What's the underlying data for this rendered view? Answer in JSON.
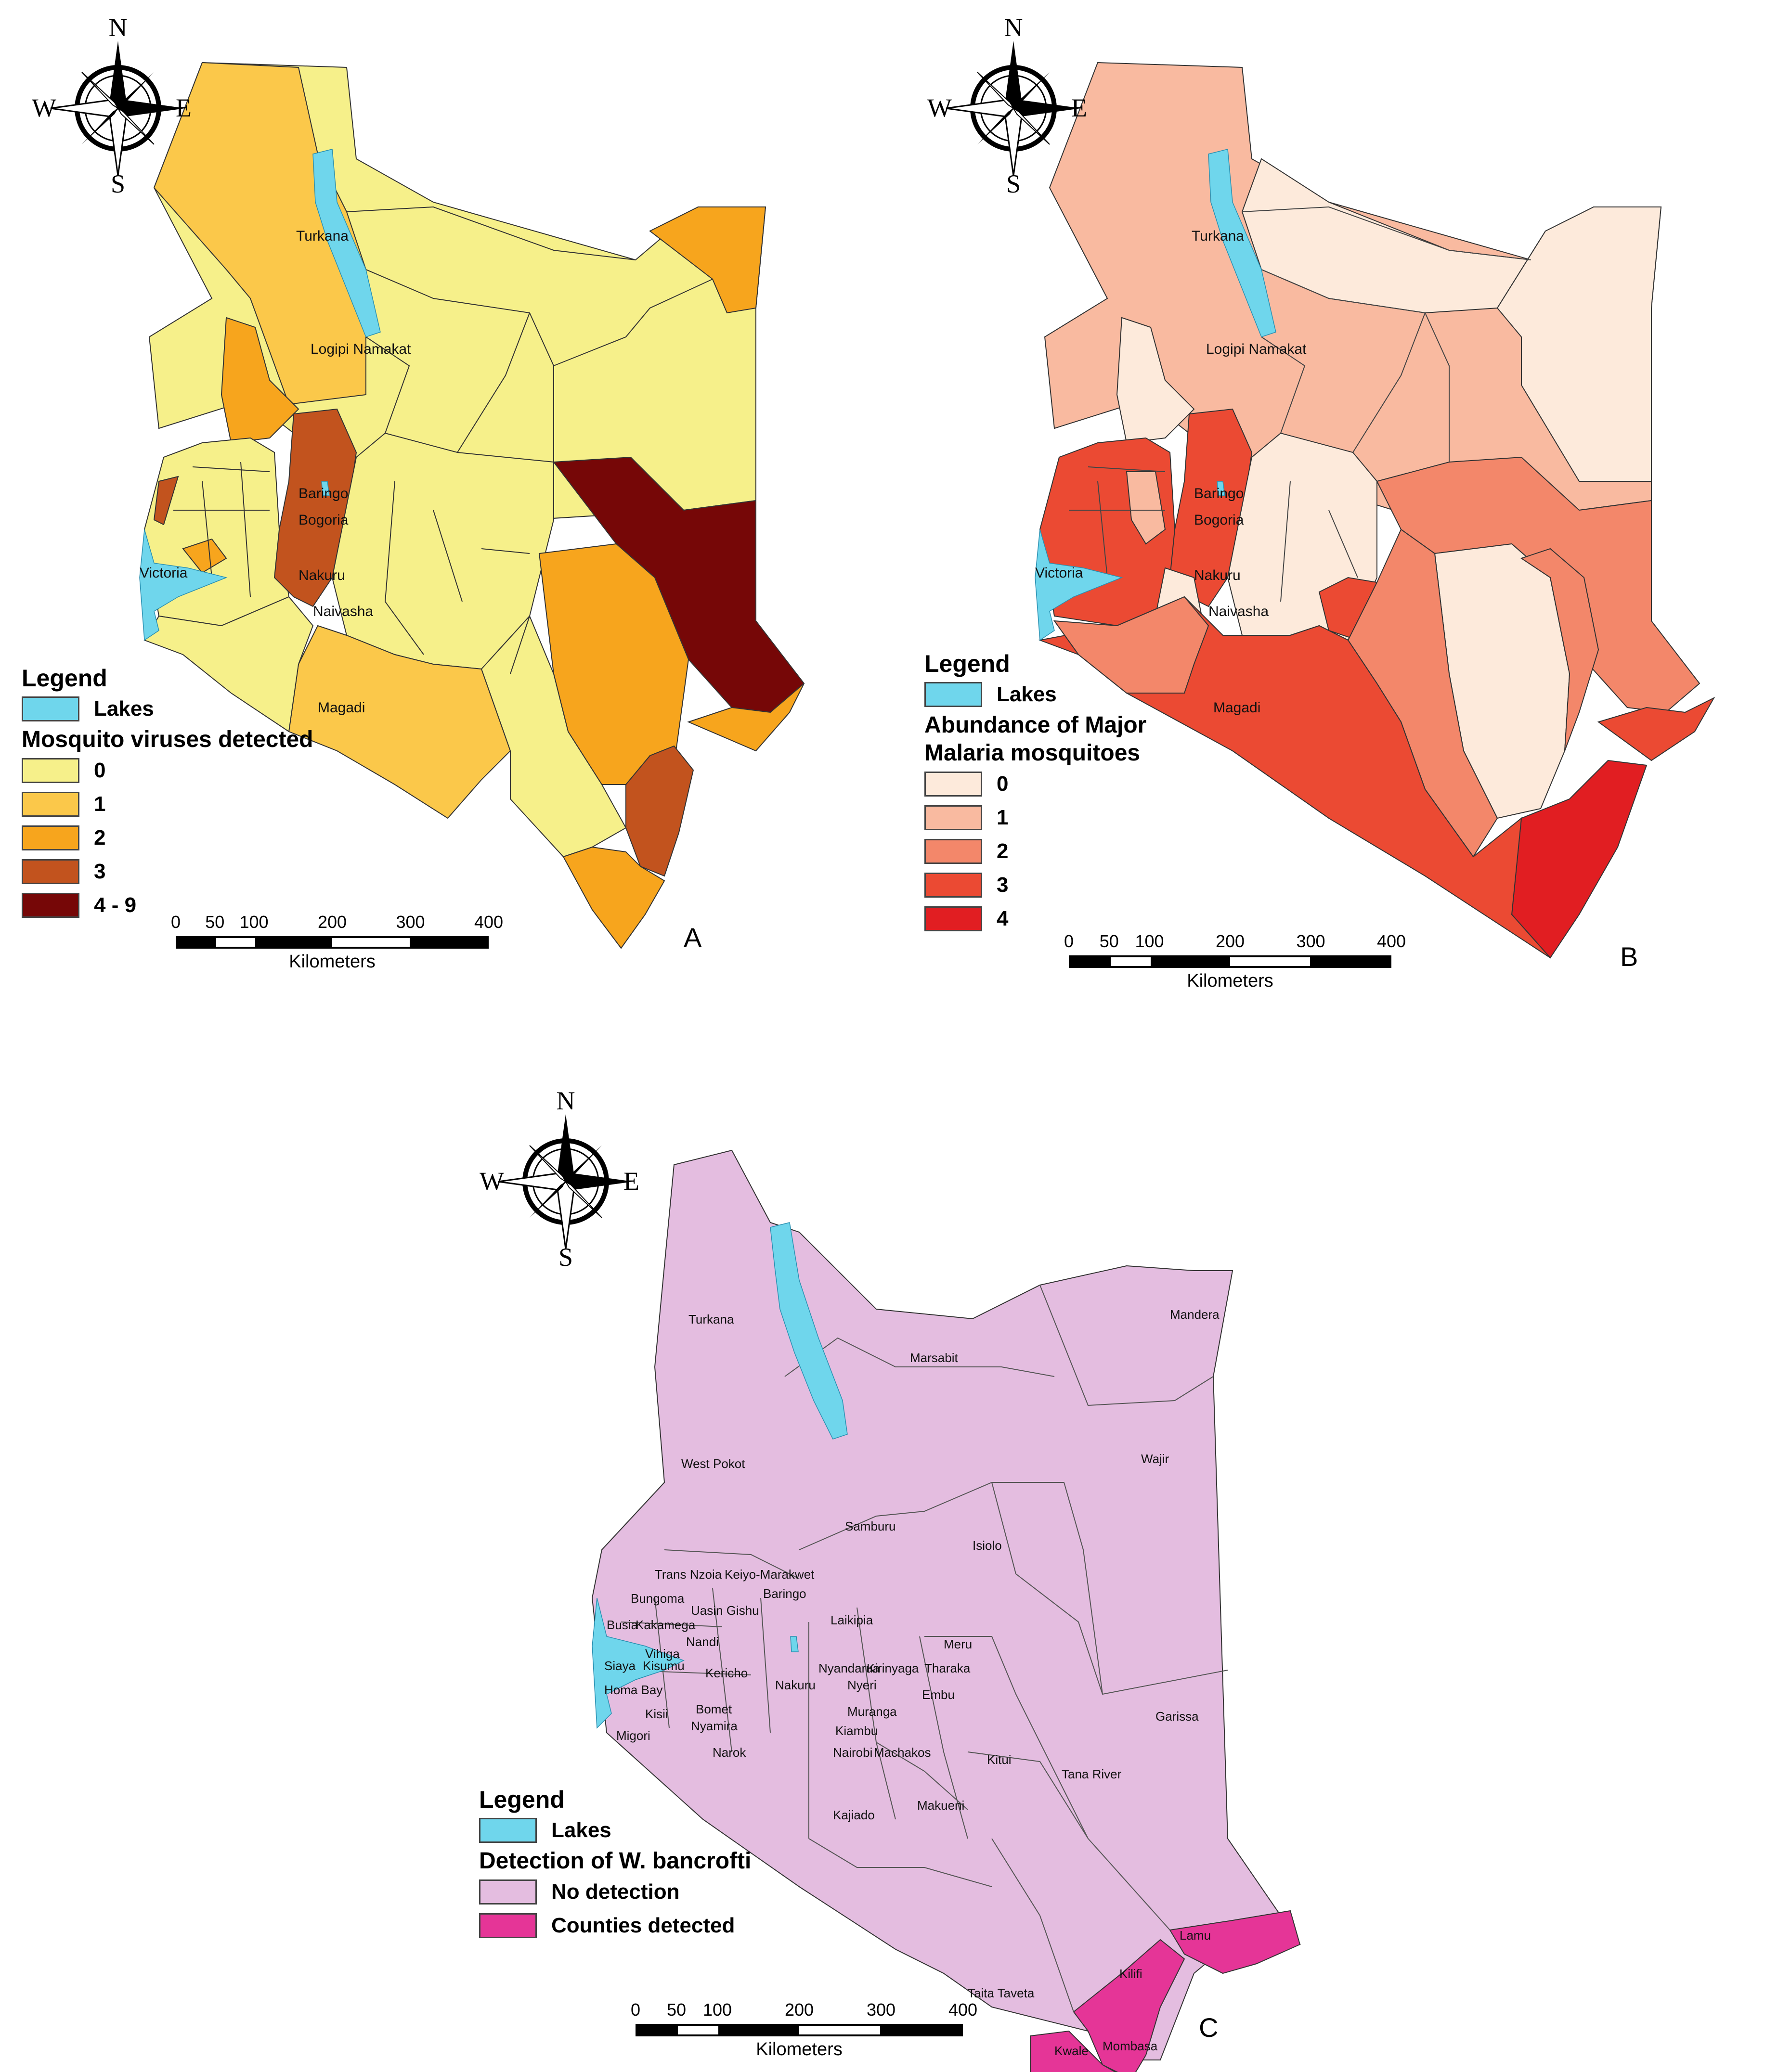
{
  "colors": {
    "lakes": "#6fd6ec",
    "a": [
      "#f6f08a",
      "#fbc84a",
      "#f7a51d",
      "#c2531e",
      "#760707"
    ],
    "b": [
      "#fdeadb",
      "#f9baa0",
      "#f3876a",
      "#eb4a33",
      "#e11e22"
    ],
    "c": [
      "#e4bde0",
      "#e53597"
    ]
  },
  "compass": {
    "n": "N",
    "s": "S",
    "e": "E",
    "w": "W"
  },
  "scale": {
    "ticks": [
      "0",
      "50",
      "100",
      "200",
      "300",
      "400"
    ],
    "unit": "Kilometers"
  },
  "panel_a": {
    "letter": "A",
    "legend_title": "Legend",
    "lakes_label": "Lakes",
    "legend_heading": "Mosquito viruses detected",
    "classes": [
      "0",
      "1",
      "2",
      "3",
      "4 - 9"
    ],
    "labels": [
      "Turkana",
      "Logipi Namakat",
      "Baringo",
      "Bogoria",
      "Victoria",
      "Nakuru",
      "Naivasha",
      "Magadi"
    ]
  },
  "panel_b": {
    "letter": "B",
    "legend_title": "Legend",
    "lakes_label": "Lakes",
    "legend_heading_1": "Abundance of Major",
    "legend_heading_2": "Malaria mosquitoes",
    "classes": [
      "0",
      "1",
      "2",
      "3",
      "4"
    ],
    "labels": [
      "Turkana",
      "Logipi Namakat",
      "Baringo",
      "Bogoria",
      "Victoria",
      "Nakuru",
      "Naivasha",
      "Magadi"
    ]
  },
  "panel_c": {
    "letter": "C",
    "legend_title": "Legend",
    "lakes_label": "Lakes",
    "legend_heading": "Detection of W. bancrofti",
    "classes": [
      "No detection",
      "Counties detected"
    ],
    "counties": [
      "Turkana",
      "Marsabit",
      "Mandera",
      "Wajir",
      "West Pokot",
      "Samburu",
      "Isiolo",
      "Trans Nzoia",
      "Keiyo-Marakwet",
      "Baringo",
      "Bungoma",
      "Uasin Gishu",
      "Busia",
      "Kakamega",
      "Laikipia",
      "Nandi",
      "Vihiga",
      "Meru",
      "Siaya",
      "Kisumu",
      "Nyandarua",
      "Kirinyaga",
      "Tharaka",
      "Kericho",
      "Homa Bay",
      "Nakuru",
      "Nyeri",
      "Embu",
      "Garissa",
      "Kisii",
      "Bomet",
      "Nyamira",
      "Muranga",
      "Migori",
      "Kiambu",
      "Narok",
      "Nairobi",
      "Machakos",
      "Kitui",
      "Tana River",
      "Kajiado",
      "Makueni",
      "Lamu",
      "Kilifi",
      "Taita Taveta",
      "Kwale",
      "Mombasa"
    ]
  }
}
